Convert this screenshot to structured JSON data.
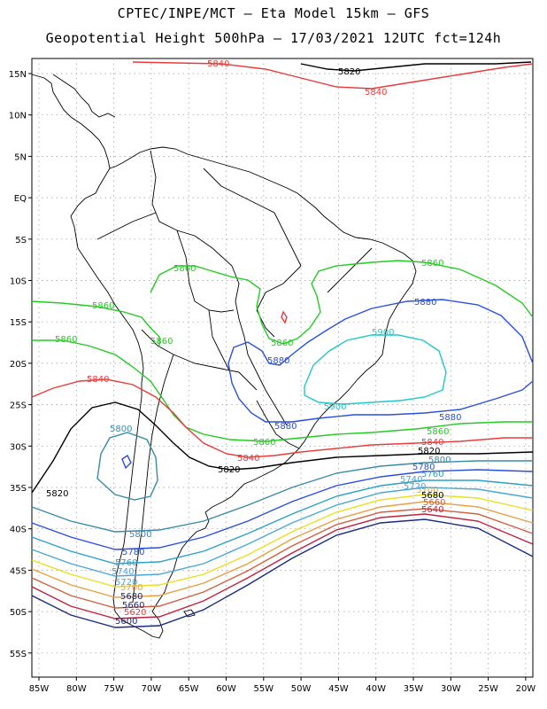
{
  "title_line1": "CPTEC/INPE/MCT –  Eta Model 15km – GFS",
  "title_line2": "Geopotential Height 500hPa – 17/03/2021 12UTC fct=124h",
  "lat_labels": [
    "15N",
    "10N",
    "5N",
    "EQ",
    "5S",
    "10S",
    "15S",
    "20S",
    "25S",
    "30S",
    "35S",
    "40S",
    "45S",
    "50S",
    "55S"
  ],
  "lon_labels": [
    "85W",
    "80W",
    "75W",
    "70W",
    "65W",
    "60W",
    "55W",
    "50W",
    "45W",
    "40W",
    "35W",
    "30W",
    "25W",
    "20W"
  ],
  "contour_colors": {
    "5900": "#1fc8c8",
    "5880": "#2a4fe0",
    "5860": "#22cc22",
    "5840": "#e83c3c",
    "5820": "#000000",
    "5800": "#3a8aa8",
    "5780": "#2a4fe0",
    "5760": "#2aa0c8",
    "5740": "#4aa8d8",
    "5720": "#e8e020",
    "5700": "#e8a040",
    "5680": "#d06040",
    "5660": "#c02040",
    "5640": "#1a2a80"
  },
  "contour_labels": {
    "l5840a": "5840",
    "l5820a": "5820",
    "l5840b": "5840",
    "l5860a": "5860",
    "l5860b": "5860",
    "l5860c": "5860",
    "l5860d": "5860",
    "l5860e": "5860",
    "l5860f": "5860",
    "l5880a": "5880",
    "l5880b": "5880",
    "l5880c": "5880",
    "l5900a": "5900",
    "l5900b": "5900",
    "l5860g": "5860",
    "l5860h": "5860",
    "l5840c": "5840",
    "l5840d": "5840",
    "l5840e": "5840",
    "l5820b": "5820",
    "l5820c": "5820",
    "l5820d": "5820",
    "l5800a": "5800",
    "l5800b": "5800",
    "l5800c": "5800",
    "l5780a": "5780",
    "l5780b": "5780",
    "l5760a": "5760",
    "l5760b": "5760",
    "l5740a": "5740",
    "l5740b": "5740",
    "l5720a": "5720",
    "l5720b": "5720",
    "l5700a": "5700",
    "l5700b": "5700",
    "l5680a": "5680",
    "l5680b": "5680",
    "l5660a": "5660",
    "l5660b": "5660",
    "l5640a": "5640",
    "l5620a": "5620",
    "l5600a": "5600",
    "l5880d": "5880"
  }
}
